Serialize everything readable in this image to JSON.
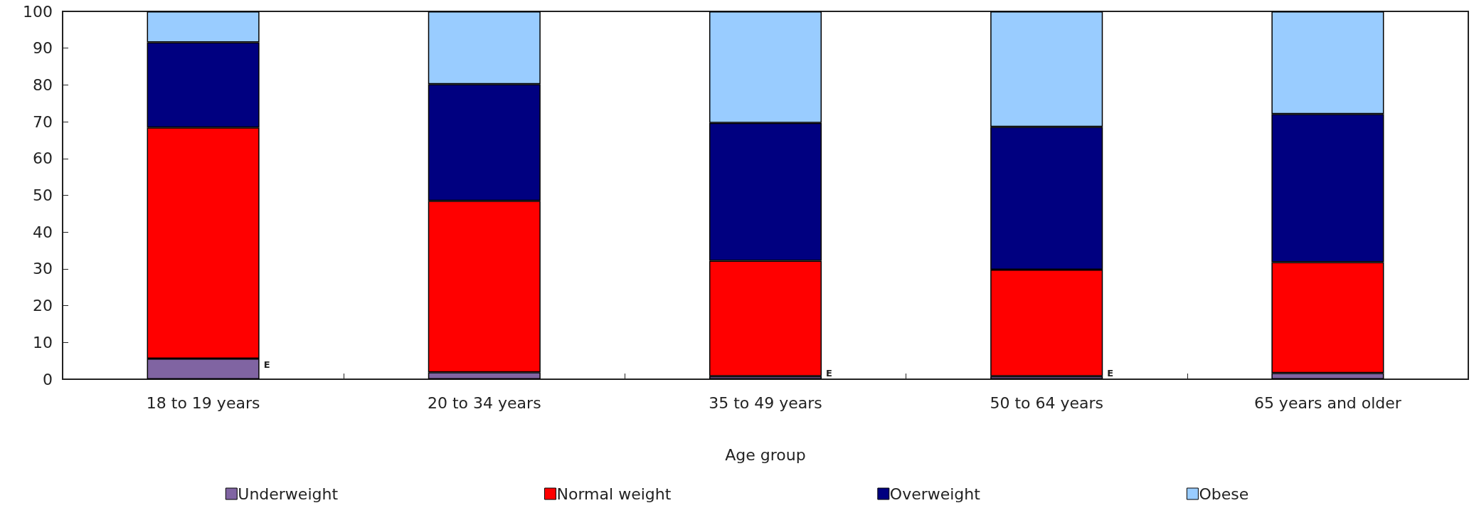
{
  "chart_data": {
    "type": "bar",
    "stacked": true,
    "xlabel": "Age group",
    "categories": [
      "18 to 19 years",
      "20 to 34 years",
      "35 to 49 years",
      "50 to 64 years",
      "65 years and older"
    ],
    "series": [
      {
        "name": "Underweight",
        "color": "#8064a2",
        "values": [
          5.6,
          1.9,
          0.8,
          0.8,
          1.7
        ],
        "value_labels": [
          "E",
          null,
          "E",
          "E",
          null
        ]
      },
      {
        "name": "Normal weight",
        "color": "#ff0000",
        "values": [
          62.8,
          46.6,
          31.4,
          29.0,
          30.1
        ]
      },
      {
        "name": "Overweight",
        "color": "#000080",
        "values": [
          23.2,
          31.7,
          37.5,
          38.8,
          40.3
        ]
      },
      {
        "name": "Obese",
        "color": "#99ccff",
        "values": [
          8.4,
          19.8,
          30.3,
          31.4,
          27.9
        ]
      }
    ],
    "ylim": [
      0,
      100
    ],
    "yticks": [
      0,
      10,
      20,
      30,
      40,
      50,
      60,
      70,
      80,
      90,
      100
    ],
    "grid": false,
    "legend": "bottom"
  }
}
